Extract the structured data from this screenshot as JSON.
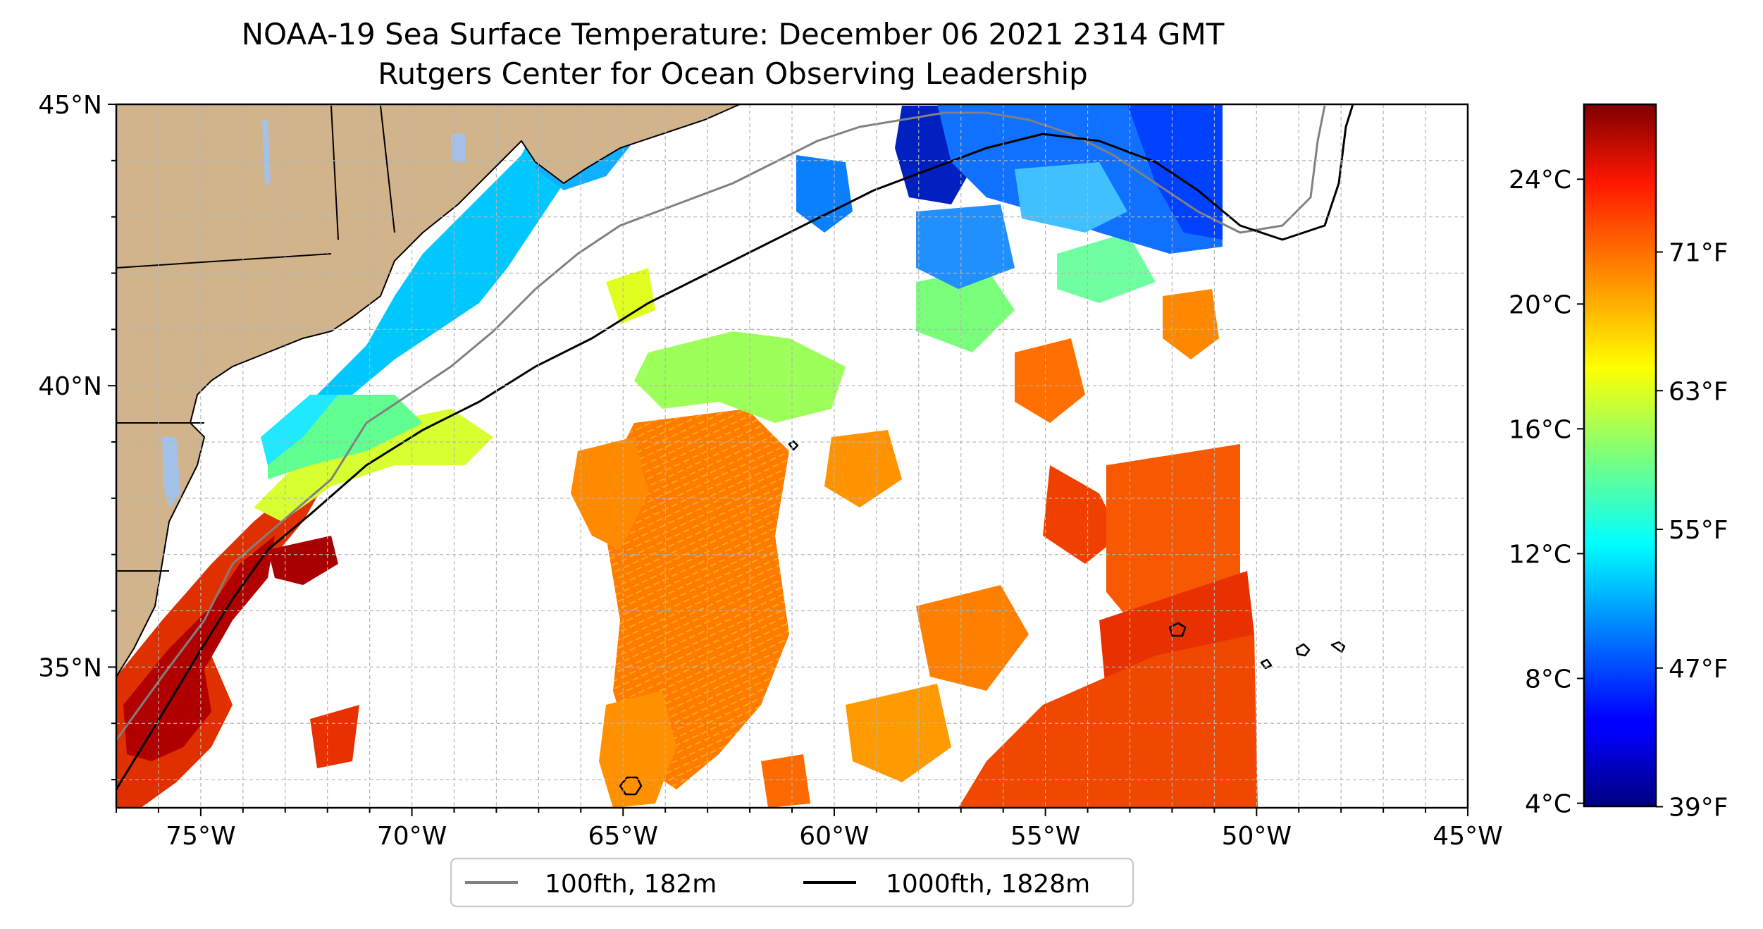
{
  "title": {
    "line1": "NOAA-19 Sea Surface Temperature: December 06 2021 2314 GMT",
    "line2": "Rutgers Center for Ocean Observing Leadership"
  },
  "map": {
    "lon_range": [
      -77,
      -45
    ],
    "lat_range": [
      32.5,
      45
    ],
    "grid": true,
    "x_tick_labels": [
      {
        "lon": -75,
        "label": "75°W"
      },
      {
        "lon": -70,
        "label": "70°W"
      },
      {
        "lon": -65,
        "label": "65°W"
      },
      {
        "lon": -60,
        "label": "60°W"
      },
      {
        "lon": -55,
        "label": "55°W"
      },
      {
        "lon": -50,
        "label": "50°W"
      },
      {
        "lon": -45,
        "label": "45°W"
      }
    ],
    "y_tick_labels": [
      {
        "lat": 45,
        "label": "45°N"
      },
      {
        "lat": 40,
        "label": "40°N"
      },
      {
        "lat": 35,
        "label": "35°N"
      }
    ],
    "colors": {
      "land": "#d2b48c",
      "lakes": "#a4c2e8",
      "ocean": "#ffffff"
    }
  },
  "legend": {
    "placement": "bottom-center",
    "items": [
      {
        "label": "100fth, 182m",
        "color": "#808080"
      },
      {
        "label": "1000fth, 1828m",
        "color": "#000000"
      }
    ]
  },
  "colorbar": {
    "colormap": "jet",
    "range_c": [
      3.9,
      26.4
    ],
    "celsius_ticks": [
      {
        "value": 24,
        "label": "24°C"
      },
      {
        "value": 20,
        "label": "20°C"
      },
      {
        "value": 16,
        "label": "16°C"
      },
      {
        "value": 12,
        "label": "12°C"
      },
      {
        "value": 8,
        "label": "8°C"
      },
      {
        "value": 4,
        "label": "4°C"
      }
    ],
    "fahrenheit_ticks": [
      {
        "value": 71,
        "label": "71°F"
      },
      {
        "value": 63,
        "label": "63°F"
      },
      {
        "value": 55,
        "label": "55°F"
      },
      {
        "value": 47,
        "label": "47°F"
      },
      {
        "value": 39,
        "label": "39°F"
      }
    ]
  }
}
